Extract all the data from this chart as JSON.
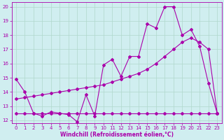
{
  "xlabel": "Windchill (Refroidissement éolien,°C)",
  "xlim": [
    -0.5,
    23.5
  ],
  "ylim": [
    11.8,
    20.3
  ],
  "yticks": [
    12,
    13,
    14,
    15,
    16,
    17,
    18,
    19,
    20
  ],
  "xticks": [
    0,
    1,
    2,
    3,
    4,
    5,
    6,
    7,
    8,
    9,
    10,
    11,
    12,
    13,
    14,
    15,
    16,
    17,
    18,
    19,
    20,
    21,
    22,
    23
  ],
  "background_color": "#d0eef0",
  "grid_color": "#b0d8cc",
  "line_color": "#aa00aa",
  "line1_x": [
    0,
    1,
    2,
    3,
    4,
    5,
    6,
    7,
    8,
    9,
    10,
    11,
    12,
    13,
    14,
    15,
    16,
    17,
    18,
    19,
    20,
    21,
    22,
    23
  ],
  "line1_y": [
    14.9,
    14.0,
    12.5,
    12.3,
    12.6,
    12.5,
    12.4,
    11.9,
    13.8,
    12.3,
    15.9,
    16.3,
    15.1,
    16.5,
    16.5,
    18.8,
    18.5,
    20.0,
    20.0,
    18.0,
    18.4,
    17.2,
    14.6,
    12.5
  ],
  "line2_x": [
    0,
    1,
    2,
    3,
    4,
    5,
    6,
    7,
    8,
    9,
    10,
    11,
    12,
    13,
    14,
    15,
    16,
    17,
    18,
    19,
    20,
    21,
    22,
    23
  ],
  "line2_y": [
    13.5,
    13.6,
    13.7,
    13.8,
    13.9,
    14.0,
    14.1,
    14.2,
    14.3,
    14.4,
    14.5,
    14.7,
    14.9,
    15.1,
    15.3,
    15.6,
    16.0,
    16.5,
    17.0,
    17.5,
    17.8,
    17.5,
    17.0,
    12.5
  ],
  "line3_x": [
    0,
    1,
    2,
    3,
    4,
    5,
    6,
    7,
    8,
    9,
    10,
    11,
    12,
    13,
    14,
    15,
    16,
    17,
    18,
    19,
    20,
    21,
    22,
    23
  ],
  "line3_y": [
    12.5,
    12.5,
    12.5,
    12.5,
    12.5,
    12.5,
    12.5,
    12.5,
    12.5,
    12.5,
    12.5,
    12.5,
    12.5,
    12.5,
    12.5,
    12.5,
    12.5,
    12.5,
    12.5,
    12.5,
    12.5,
    12.5,
    12.5,
    12.5
  ],
  "marker": "D",
  "marker_size": 2,
  "linewidth": 0.8,
  "tick_fontsize": 5,
  "xlabel_fontsize": 5.5
}
